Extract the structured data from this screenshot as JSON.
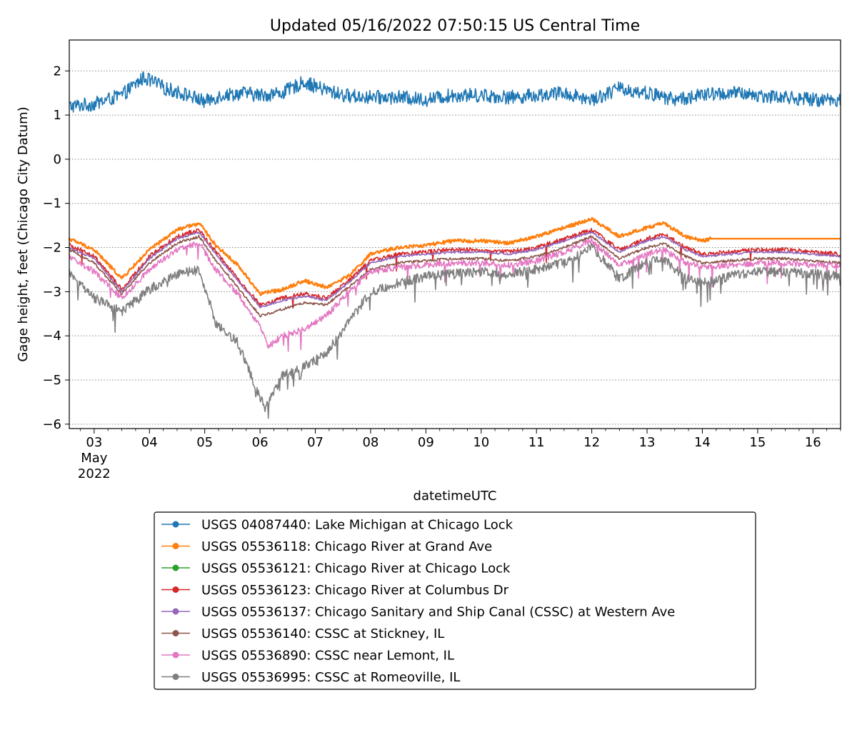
{
  "chart_data": {
    "type": "line",
    "title": "Updated 05/16/2022 07:50:15 US Central Time",
    "xlabel": "datetimeUTC",
    "ylabel": "Gage height, feet (Chicago City Datum)",
    "xlim": [
      2.55,
      16.5
    ],
    "ylim": [
      -6.1,
      2.7
    ],
    "grid": "horizontal dotted",
    "legend_position": "below plot",
    "x_ticks": [
      {
        "value": 3,
        "label": "03",
        "sub": [
          "May",
          "2022"
        ]
      },
      {
        "value": 4,
        "label": "04"
      },
      {
        "value": 5,
        "label": "05"
      },
      {
        "value": 6,
        "label": "06"
      },
      {
        "value": 7,
        "label": "07"
      },
      {
        "value": 8,
        "label": "08"
      },
      {
        "value": 9,
        "label": "09"
      },
      {
        "value": 10,
        "label": "10"
      },
      {
        "value": 11,
        "label": "11"
      },
      {
        "value": 12,
        "label": "12"
      },
      {
        "value": 13,
        "label": "13"
      },
      {
        "value": 14,
        "label": "14"
      },
      {
        "value": 15,
        "label": "15"
      },
      {
        "value": 16,
        "label": "16"
      }
    ],
    "y_ticks": [
      {
        "value": 2,
        "label": "2"
      },
      {
        "value": 1,
        "label": "1"
      },
      {
        "value": 0,
        "label": "0"
      },
      {
        "value": -1,
        "label": "−1"
      },
      {
        "value": -2,
        "label": "−2"
      },
      {
        "value": -3,
        "label": "−3"
      },
      {
        "value": -4,
        "label": "−4"
      },
      {
        "value": -5,
        "label": "−5"
      },
      {
        "value": -6,
        "label": "−6"
      }
    ],
    "series": [
      {
        "name": "USGS 04087440: Lake Michigan at Chicago Lock",
        "color": "#1f77b4",
        "x": [
          2.55,
          3.0,
          3.5,
          3.9,
          4.3,
          4.7,
          5.0,
          5.3,
          5.7,
          6.0,
          6.4,
          6.8,
          7.1,
          7.5,
          8.0,
          8.5,
          9.0,
          9.5,
          10.0,
          10.5,
          11.0,
          11.5,
          12.0,
          12.5,
          13.0,
          13.5,
          14.0,
          14.5,
          15.0,
          15.5,
          16.0,
          16.5
        ],
        "y": [
          1.2,
          1.25,
          1.45,
          1.85,
          1.6,
          1.45,
          1.3,
          1.45,
          1.5,
          1.45,
          1.5,
          1.75,
          1.6,
          1.45,
          1.4,
          1.4,
          1.35,
          1.45,
          1.45,
          1.4,
          1.45,
          1.5,
          1.35,
          1.6,
          1.5,
          1.35,
          1.45,
          1.5,
          1.45,
          1.4,
          1.35,
          1.35
        ]
      },
      {
        "name": "USGS 05536118: Chicago River at Grand Ave",
        "color": "#ff7f0e",
        "x": [
          2.55,
          3.0,
          3.5,
          4.0,
          4.5,
          4.9,
          5.2,
          5.6,
          6.0,
          6.4,
          6.8,
          7.2,
          7.6,
          8.0,
          8.5,
          9.0,
          9.5,
          10.0,
          10.5,
          11.0,
          11.5,
          12.0,
          12.5,
          13.0,
          13.3,
          13.7,
          14.0,
          14.15,
          14.5,
          15.0,
          15.5,
          16.0,
          16.5
        ],
        "y": [
          -1.8,
          -2.05,
          -2.7,
          -2.05,
          -1.6,
          -1.45,
          -1.95,
          -2.4,
          -3.05,
          -2.95,
          -2.75,
          -2.9,
          -2.65,
          -2.15,
          -2.0,
          -1.95,
          -1.85,
          -1.85,
          -1.9,
          -1.75,
          -1.55,
          -1.35,
          -1.75,
          -1.55,
          -1.45,
          -1.75,
          -1.85,
          -1.8,
          -1.8,
          -1.8,
          -1.8,
          -1.8,
          -1.8
        ]
      },
      {
        "name": "USGS 05536121: Chicago River at Chicago Lock",
        "color": "#2ca02c",
        "x": [],
        "y": []
      },
      {
        "name": "USGS 05536123: Chicago River at Columbus Dr",
        "color": "#d62728",
        "x": [
          2.55,
          3.0,
          3.5,
          4.0,
          4.5,
          4.9,
          5.2,
          5.6,
          6.0,
          6.4,
          6.8,
          7.2,
          7.6,
          8.0,
          8.5,
          9.0,
          9.5,
          10.0,
          10.5,
          11.0,
          11.5,
          12.0,
          12.5,
          13.0,
          13.3,
          13.7,
          14.0,
          14.5,
          15.0,
          15.5,
          16.0,
          16.5
        ],
        "y": [
          -1.95,
          -2.2,
          -2.95,
          -2.2,
          -1.75,
          -1.6,
          -2.1,
          -2.7,
          -3.3,
          -3.15,
          -3.05,
          -3.15,
          -2.75,
          -2.3,
          -2.15,
          -2.1,
          -2.05,
          -2.05,
          -2.1,
          -2.0,
          -1.8,
          -1.6,
          -2.05,
          -1.8,
          -1.7,
          -2.0,
          -2.15,
          -2.1,
          -2.05,
          -2.05,
          -2.1,
          -2.15
        ]
      },
      {
        "name": "USGS 05536137: Chicago Sanitary and Ship Canal (CSSC) at Western Ave",
        "color": "#9467bd",
        "x": [
          2.55,
          3.0,
          3.5,
          4.0,
          4.5,
          4.9,
          5.2,
          5.6,
          6.0,
          6.4,
          6.8,
          7.2,
          7.6,
          8.0,
          8.5,
          9.0,
          9.5,
          10.0,
          10.5,
          11.0,
          11.5,
          12.0,
          12.5,
          13.0,
          13.3,
          13.7,
          14.0,
          14.5,
          15.0,
          15.5,
          16.0,
          16.5
        ],
        "y": [
          -2.0,
          -2.25,
          -3.0,
          -2.25,
          -1.8,
          -1.65,
          -2.15,
          -2.75,
          -3.35,
          -3.2,
          -3.1,
          -3.2,
          -2.8,
          -2.35,
          -2.2,
          -2.15,
          -2.1,
          -2.1,
          -2.15,
          -2.05,
          -1.85,
          -1.65,
          -2.1,
          -1.85,
          -1.75,
          -2.05,
          -2.2,
          -2.15,
          -2.1,
          -2.1,
          -2.15,
          -2.2
        ]
      },
      {
        "name": "USGS 05536140: CSSC at Stickney, IL",
        "color": "#8c564b",
        "x": [
          2.55,
          3.0,
          3.5,
          4.0,
          4.5,
          4.9,
          5.2,
          5.6,
          6.0,
          6.4,
          6.8,
          7.2,
          7.6,
          8.0,
          8.5,
          9.0,
          9.5,
          10.0,
          10.5,
          11.0,
          11.5,
          12.0,
          12.5,
          13.0,
          13.3,
          13.7,
          14.0,
          14.5,
          15.0,
          15.5,
          16.0,
          16.5
        ],
        "y": [
          -2.05,
          -2.35,
          -3.05,
          -2.35,
          -1.9,
          -1.75,
          -2.3,
          -2.9,
          -3.55,
          -3.4,
          -3.25,
          -3.3,
          -2.9,
          -2.5,
          -2.35,
          -2.3,
          -2.25,
          -2.25,
          -2.3,
          -2.2,
          -2.0,
          -1.75,
          -2.25,
          -2.0,
          -1.9,
          -2.2,
          -2.35,
          -2.3,
          -2.25,
          -2.25,
          -2.3,
          -2.35
        ]
      },
      {
        "name": "USGS 05536890: CSSC near Lemont, IL",
        "color": "#e377c2",
        "x": [
          2.55,
          3.0,
          3.5,
          4.0,
          4.5,
          4.9,
          5.2,
          5.6,
          6.0,
          6.15,
          6.4,
          6.8,
          7.2,
          7.6,
          8.0,
          8.5,
          9.0,
          9.5,
          10.0,
          10.5,
          11.0,
          11.5,
          12.0,
          12.5,
          13.0,
          13.3,
          13.7,
          14.0,
          14.5,
          15.0,
          15.5,
          16.0,
          16.5
        ],
        "y": [
          -2.2,
          -2.55,
          -3.15,
          -2.5,
          -2.05,
          -1.9,
          -2.5,
          -3.05,
          -3.8,
          -4.25,
          -4.0,
          -3.85,
          -3.55,
          -3.0,
          -2.55,
          -2.45,
          -2.4,
          -2.35,
          -2.35,
          -2.4,
          -2.3,
          -2.1,
          -1.85,
          -2.4,
          -2.15,
          -2.05,
          -2.35,
          -2.45,
          -2.4,
          -2.35,
          -2.35,
          -2.4,
          -2.4
        ]
      },
      {
        "name": "USGS 05536995: CSSC at Romeoville, IL",
        "color": "#7f7f7f",
        "x": [
          2.55,
          3.0,
          3.5,
          4.0,
          4.5,
          4.9,
          5.2,
          5.6,
          5.9,
          6.1,
          6.4,
          6.8,
          7.2,
          7.6,
          8.0,
          8.5,
          9.0,
          9.5,
          10.0,
          10.5,
          11.0,
          11.5,
          12.0,
          12.5,
          13.0,
          13.3,
          13.7,
          14.0,
          14.5,
          15.0,
          15.5,
          16.0,
          16.5
        ],
        "y": [
          -2.6,
          -3.15,
          -3.45,
          -2.95,
          -2.6,
          -2.5,
          -3.7,
          -4.15,
          -5.1,
          -5.65,
          -4.9,
          -4.7,
          -4.4,
          -3.7,
          -3.0,
          -2.8,
          -2.65,
          -2.6,
          -2.55,
          -2.6,
          -2.5,
          -2.35,
          -2.0,
          -2.7,
          -2.35,
          -2.25,
          -2.7,
          -2.8,
          -2.65,
          -2.55,
          -2.55,
          -2.6,
          -2.65
        ]
      }
    ]
  }
}
